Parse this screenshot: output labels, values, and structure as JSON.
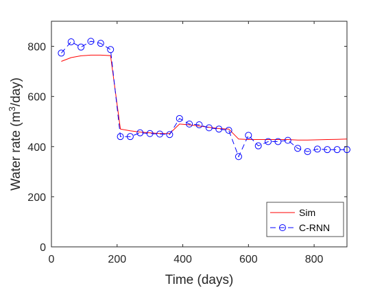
{
  "chart_data": {
    "type": "line",
    "xlabel": "Time (days)",
    "ylabel_main": "Water rate (m",
    "ylabel_sup": "3",
    "ylabel_tail": "/day)",
    "xlim": [
      0,
      900
    ],
    "ylim": [
      0,
      900
    ],
    "xticks": [
      0,
      200,
      400,
      600,
      800
    ],
    "yticks": [
      0,
      200,
      400,
      600,
      800
    ],
    "grid": false,
    "legend_position": "bottom-right",
    "series": [
      {
        "name": "Sim",
        "color": "#ff0000",
        "style": "solid",
        "marker": "none",
        "x": [
          30,
          60,
          90,
          120,
          150,
          180,
          210,
          240,
          270,
          300,
          330,
          360,
          390,
          420,
          450,
          480,
          510,
          540,
          570,
          600,
          630,
          660,
          690,
          720,
          750,
          780,
          810,
          840,
          870,
          900
        ],
        "y": [
          740,
          755,
          762,
          765,
          765,
          763,
          470,
          463,
          458,
          455,
          452,
          452,
          490,
          487,
          482,
          477,
          472,
          470,
          430,
          428,
          428,
          428,
          428,
          428,
          426,
          426,
          427,
          428,
          429,
          430
        ]
      },
      {
        "name": "C-RNN",
        "color": "#0000ff",
        "style": "dashed",
        "marker": "circle",
        "x": [
          30,
          60,
          90,
          120,
          150,
          180,
          210,
          240,
          270,
          300,
          330,
          360,
          390,
          420,
          450,
          480,
          510,
          540,
          570,
          600,
          630,
          660,
          690,
          720,
          750,
          780,
          810,
          840,
          870,
          900
        ],
        "y": [
          773,
          818,
          797,
          820,
          812,
          787,
          440,
          440,
          455,
          452,
          450,
          448,
          512,
          490,
          487,
          475,
          470,
          465,
          360,
          445,
          403,
          420,
          420,
          425,
          393,
          380,
          390,
          388,
          388,
          388
        ]
      }
    ]
  }
}
